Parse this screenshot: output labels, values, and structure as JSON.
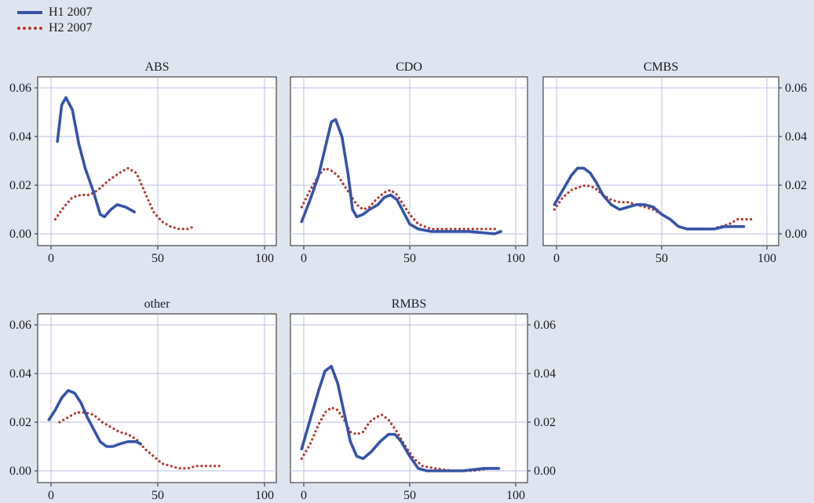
{
  "legend": [
    {
      "label": "H1 2007",
      "color": "#3454a8",
      "style": "solid"
    },
    {
      "label": "H2 2007",
      "color": "#b2392f",
      "style": "dotted"
    }
  ],
  "chart_data": [
    {
      "type": "line",
      "title": "ABS",
      "xlim": [
        0,
        100
      ],
      "ylim": [
        0,
        0.06
      ],
      "xticks": [
        "0",
        "50",
        "100"
      ],
      "yticks": [
        "0.00",
        "0.02",
        "0.04",
        "0.06"
      ],
      "grid": true,
      "series": [
        {
          "name": "H1 2007",
          "points": [
            [
              3,
              0.038
            ],
            [
              5,
              0.053
            ],
            [
              7,
              0.056
            ],
            [
              10,
              0.051
            ],
            [
              13,
              0.037
            ],
            [
              16,
              0.027
            ],
            [
              20,
              0.017
            ],
            [
              23,
              0.008
            ],
            [
              25,
              0.007
            ],
            [
              28,
              0.01
            ],
            [
              31,
              0.012
            ],
            [
              35,
              0.011
            ],
            [
              39,
              0.009
            ]
          ]
        },
        {
          "name": "H2 2007",
          "points": [
            [
              2,
              0.006
            ],
            [
              6,
              0.011
            ],
            [
              10,
              0.015
            ],
            [
              14,
              0.016
            ],
            [
              18,
              0.016
            ],
            [
              22,
              0.018
            ],
            [
              27,
              0.022
            ],
            [
              32,
              0.025
            ],
            [
              36,
              0.027
            ],
            [
              40,
              0.025
            ],
            [
              44,
              0.017
            ],
            [
              48,
              0.009
            ],
            [
              52,
              0.005
            ],
            [
              56,
              0.003
            ],
            [
              60,
              0.002
            ],
            [
              64,
              0.002
            ],
            [
              67,
              0.003
            ]
          ]
        }
      ]
    },
    {
      "type": "line",
      "title": "CDO",
      "xlim": [
        0,
        100
      ],
      "ylim": [
        0,
        0.06
      ],
      "xticks": [
        "0",
        "50",
        "100"
      ],
      "yticks": [
        "0.00",
        "0.02",
        "0.04",
        "0.06"
      ],
      "grid": true,
      "series": [
        {
          "name": "H1 2007",
          "points": [
            [
              -1,
              0.005
            ],
            [
              3,
              0.014
            ],
            [
              7,
              0.024
            ],
            [
              10,
              0.035
            ],
            [
              13,
              0.046
            ],
            [
              15,
              0.047
            ],
            [
              18,
              0.04
            ],
            [
              21,
              0.024
            ],
            [
              23,
              0.01
            ],
            [
              25,
              0.007
            ],
            [
              28,
              0.008
            ],
            [
              31,
              0.01
            ],
            [
              35,
              0.012
            ],
            [
              38,
              0.015
            ],
            [
              41,
              0.016
            ],
            [
              44,
              0.014
            ],
            [
              47,
              0.009
            ],
            [
              50,
              0.004
            ],
            [
              54,
              0.002
            ],
            [
              60,
              0.001
            ],
            [
              70,
              0.001
            ],
            [
              78,
              0.001
            ],
            [
              90,
              0.0
            ],
            [
              93,
              0.001
            ]
          ]
        },
        {
          "name": "H2 2007",
          "points": [
            [
              -1,
              0.011
            ],
            [
              3,
              0.018
            ],
            [
              7,
              0.024
            ],
            [
              10,
              0.027
            ],
            [
              13,
              0.026
            ],
            [
              16,
              0.024
            ],
            [
              19,
              0.02
            ],
            [
              22,
              0.016
            ],
            [
              25,
              0.012
            ],
            [
              28,
              0.01
            ],
            [
              31,
              0.011
            ],
            [
              34,
              0.014
            ],
            [
              38,
              0.017
            ],
            [
              41,
              0.018
            ],
            [
              44,
              0.016
            ],
            [
              47,
              0.012
            ],
            [
              50,
              0.008
            ],
            [
              54,
              0.004
            ],
            [
              60,
              0.002
            ],
            [
              70,
              0.002
            ],
            [
              80,
              0.002
            ],
            [
              88,
              0.002
            ],
            [
              91,
              0.002
            ]
          ]
        }
      ]
    },
    {
      "type": "line",
      "title": "CMBS",
      "xlim": [
        0,
        100
      ],
      "ylim": [
        0,
        0.06
      ],
      "xticks": [
        "0",
        "50",
        "100"
      ],
      "yticks": [
        "0.00",
        "0.02",
        "0.04",
        "0.06"
      ],
      "grid": true,
      "series": [
        {
          "name": "H1 2007",
          "points": [
            [
              -1,
              0.012
            ],
            [
              3,
              0.018
            ],
            [
              7,
              0.024
            ],
            [
              10,
              0.027
            ],
            [
              13,
              0.027
            ],
            [
              16,
              0.025
            ],
            [
              19,
              0.021
            ],
            [
              22,
              0.016
            ],
            [
              26,
              0.012
            ],
            [
              30,
              0.01
            ],
            [
              34,
              0.011
            ],
            [
              38,
              0.012
            ],
            [
              42,
              0.012
            ],
            [
              46,
              0.011
            ],
            [
              50,
              0.008
            ],
            [
              54,
              0.006
            ],
            [
              58,
              0.003
            ],
            [
              62,
              0.002
            ],
            [
              66,
              0.002
            ],
            [
              70,
              0.002
            ],
            [
              75,
              0.002
            ],
            [
              80,
              0.003
            ],
            [
              85,
              0.003
            ],
            [
              89,
              0.003
            ]
          ]
        },
        {
          "name": "H2 2007",
          "points": [
            [
              -1,
              0.01
            ],
            [
              3,
              0.015
            ],
            [
              7,
              0.018
            ],
            [
              10,
              0.019
            ],
            [
              14,
              0.02
            ],
            [
              18,
              0.019
            ],
            [
              22,
              0.016
            ],
            [
              26,
              0.014
            ],
            [
              30,
              0.013
            ],
            [
              34,
              0.013
            ],
            [
              38,
              0.012
            ],
            [
              42,
              0.011
            ],
            [
              46,
              0.01
            ],
            [
              50,
              0.008
            ],
            [
              54,
              0.006
            ],
            [
              58,
              0.003
            ],
            [
              62,
              0.002
            ],
            [
              66,
              0.002
            ],
            [
              70,
              0.002
            ],
            [
              74,
              0.002
            ],
            [
              78,
              0.003
            ],
            [
              82,
              0.004
            ],
            [
              86,
              0.006
            ],
            [
              90,
              0.006
            ],
            [
              93,
              0.006
            ]
          ]
        }
      ]
    },
    {
      "type": "line",
      "title": "other",
      "xlim": [
        0,
        100
      ],
      "ylim": [
        0,
        0.06
      ],
      "xticks": [
        "0",
        "50",
        "100"
      ],
      "yticks": [
        "0.00",
        "0.02",
        "0.04",
        "0.06"
      ],
      "grid": true,
      "series": [
        {
          "name": "H1 2007",
          "points": [
            [
              -1,
              0.021
            ],
            [
              2,
              0.025
            ],
            [
              5,
              0.03
            ],
            [
              8,
              0.033
            ],
            [
              11,
              0.032
            ],
            [
              14,
              0.028
            ],
            [
              17,
              0.022
            ],
            [
              20,
              0.017
            ],
            [
              23,
              0.012
            ],
            [
              26,
              0.01
            ],
            [
              29,
              0.01
            ],
            [
              32,
              0.011
            ],
            [
              36,
              0.012
            ],
            [
              40,
              0.012
            ],
            [
              42,
              0.011
            ]
          ]
        },
        {
          "name": "H2 2007",
          "points": [
            [
              4,
              0.02
            ],
            [
              8,
              0.022
            ],
            [
              12,
              0.024
            ],
            [
              16,
              0.024
            ],
            [
              20,
              0.023
            ],
            [
              24,
              0.02
            ],
            [
              28,
              0.018
            ],
            [
              32,
              0.016
            ],
            [
              36,
              0.015
            ],
            [
              40,
              0.013
            ],
            [
              44,
              0.009
            ],
            [
              48,
              0.006
            ],
            [
              52,
              0.003
            ],
            [
              56,
              0.002
            ],
            [
              60,
              0.001
            ],
            [
              64,
              0.001
            ],
            [
              68,
              0.002
            ],
            [
              72,
              0.002
            ],
            [
              76,
              0.002
            ],
            [
              79,
              0.002
            ]
          ]
        }
      ]
    },
    {
      "type": "line",
      "title": "RMBS",
      "xlim": [
        0,
        100
      ],
      "ylim": [
        0,
        0.06
      ],
      "xticks": [
        "0",
        "50",
        "100"
      ],
      "yticks": [
        "0.00",
        "0.02",
        "0.04",
        "0.06"
      ],
      "grid": true,
      "series": [
        {
          "name": "H1 2007",
          "points": [
            [
              -1,
              0.009
            ],
            [
              3,
              0.021
            ],
            [
              7,
              0.033
            ],
            [
              10,
              0.041
            ],
            [
              13,
              0.043
            ],
            [
              16,
              0.036
            ],
            [
              19,
              0.024
            ],
            [
              22,
              0.012
            ],
            [
              25,
              0.006
            ],
            [
              28,
              0.005
            ],
            [
              32,
              0.008
            ],
            [
              36,
              0.012
            ],
            [
              40,
              0.015
            ],
            [
              43,
              0.015
            ],
            [
              46,
              0.012
            ],
            [
              50,
              0.006
            ],
            [
              54,
              0.001
            ],
            [
              58,
              0.0
            ],
            [
              65,
              0.0
            ],
            [
              75,
              0.0
            ],
            [
              85,
              0.001
            ],
            [
              92,
              0.001
            ]
          ]
        },
        {
          "name": "H2 2007",
          "points": [
            [
              -1,
              0.005
            ],
            [
              3,
              0.011
            ],
            [
              7,
              0.019
            ],
            [
              10,
              0.024
            ],
            [
              13,
              0.026
            ],
            [
              16,
              0.025
            ],
            [
              19,
              0.021
            ],
            [
              22,
              0.016
            ],
            [
              25,
              0.015
            ],
            [
              28,
              0.016
            ],
            [
              31,
              0.02
            ],
            [
              34,
              0.022
            ],
            [
              37,
              0.023
            ],
            [
              40,
              0.021
            ],
            [
              44,
              0.016
            ],
            [
              48,
              0.01
            ],
            [
              52,
              0.005
            ],
            [
              56,
              0.002
            ],
            [
              62,
              0.001
            ],
            [
              70,
              0.0
            ],
            [
              80,
              0.0
            ],
            [
              88,
              0.001
            ],
            [
              92,
              0.001
            ]
          ]
        }
      ]
    }
  ]
}
